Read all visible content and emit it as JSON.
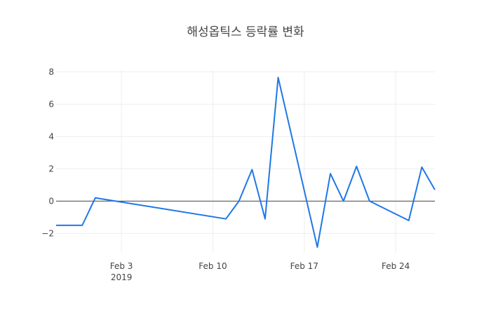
{
  "chart_data": {
    "type": "line",
    "title": "해성옵틱스 등락률 변화",
    "xlabel": "",
    "ylabel": "",
    "x_axis": {
      "ticks": [
        "2019-02-03",
        "2019-02-10",
        "2019-02-17",
        "2019-02-24"
      ],
      "tick_labels": [
        "Feb 3",
        "Feb 10",
        "Feb 17",
        "Feb 24"
      ],
      "year_label": "2019",
      "range": [
        "2019-01-29",
        "2019-02-27"
      ]
    },
    "y_axis": {
      "ticks": [
        -2,
        0,
        2,
        4,
        6,
        8
      ],
      "tick_labels": [
        "−2",
        "0",
        "2",
        "4",
        "6",
        "8"
      ],
      "range": [
        -3.2,
        8.1
      ]
    },
    "grid": true,
    "zeroline": true,
    "line_color": "#1f77e8",
    "series": [
      {
        "x": [
          "2019-01-29",
          "2019-01-30",
          "2019-01-31",
          "2019-02-01",
          "2019-02-11",
          "2019-02-12",
          "2019-02-13",
          "2019-02-14",
          "2019-02-15",
          "2019-02-18",
          "2019-02-19",
          "2019-02-20",
          "2019-02-21",
          "2019-02-22",
          "2019-02-25",
          "2019-02-26",
          "2019-02-27"
        ],
        "y": [
          -1.5,
          -1.5,
          -1.5,
          0.2,
          -1.1,
          0.0,
          1.95,
          -1.1,
          7.65,
          -2.85,
          1.7,
          0.0,
          2.15,
          0.0,
          -1.2,
          2.1,
          0.7
        ]
      }
    ]
  }
}
